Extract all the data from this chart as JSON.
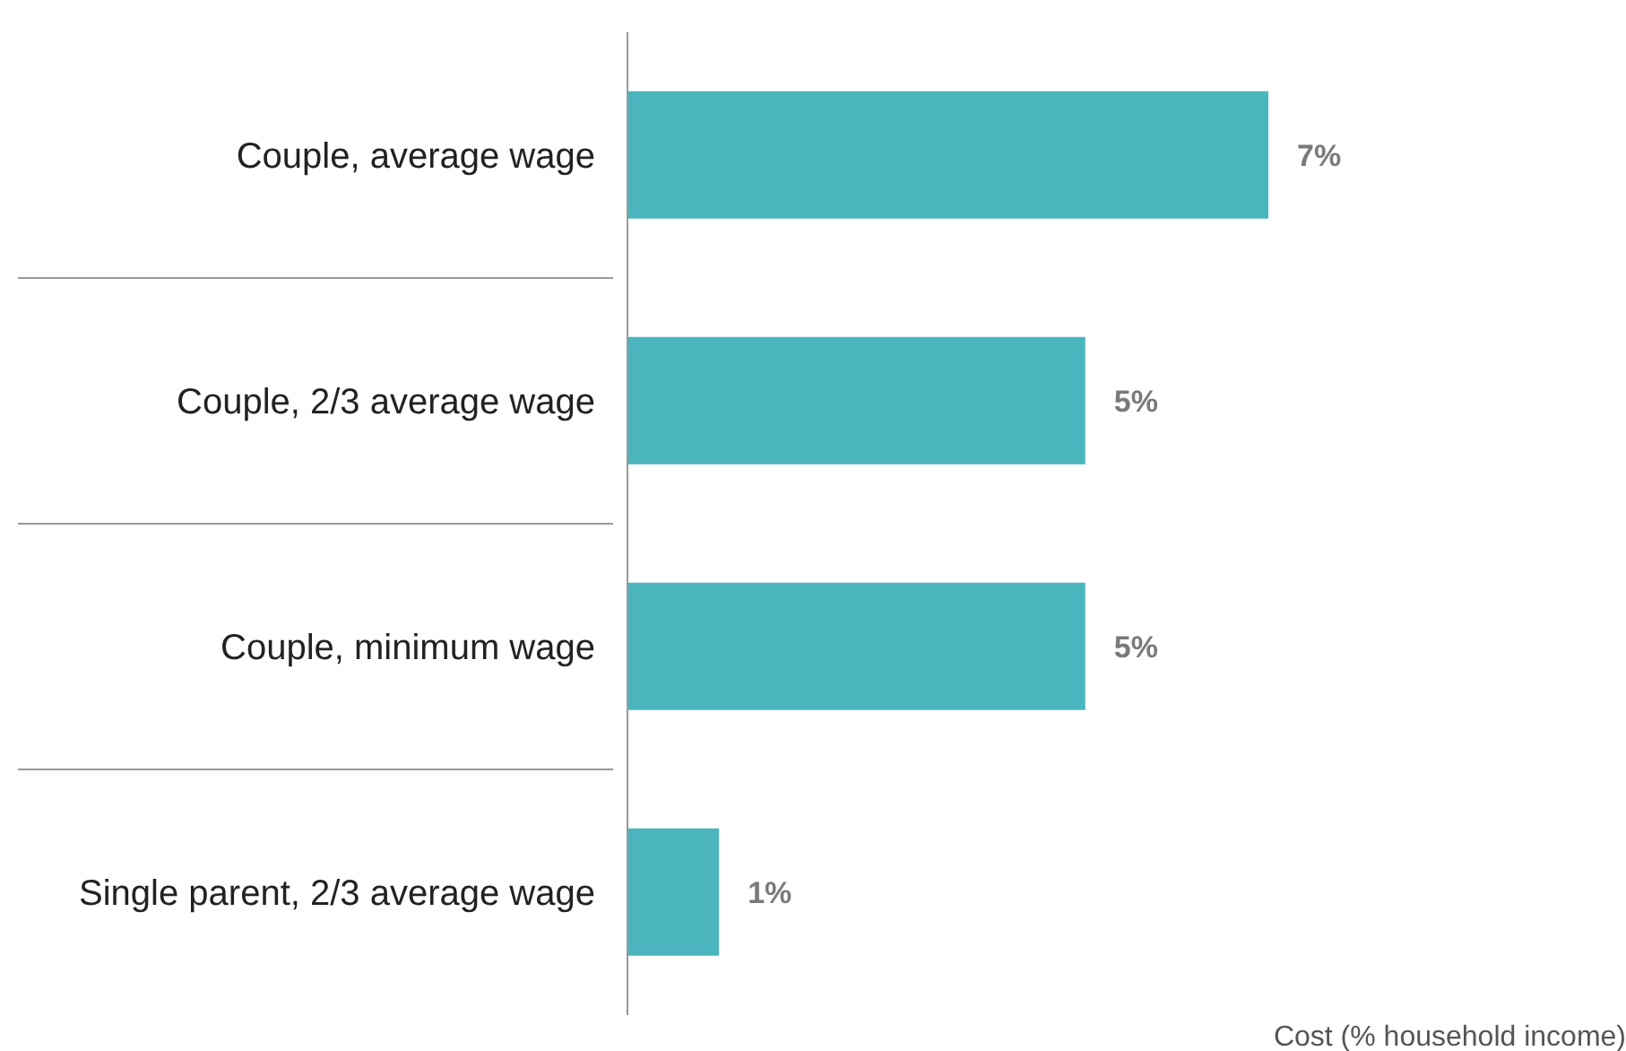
{
  "chart_data": {
    "type": "bar",
    "orientation": "horizontal",
    "xlabel": "Cost (% household income)",
    "categories": [
      "Couple, average wage",
      "Couple, 2/3 average wage",
      "Couple, minimum wage",
      "Single parent, 2/3 average wage"
    ],
    "values": [
      7,
      5,
      5,
      1
    ],
    "value_labels": [
      "7%",
      "5%",
      "5%",
      "1%"
    ],
    "color": "#4bb5be"
  }
}
